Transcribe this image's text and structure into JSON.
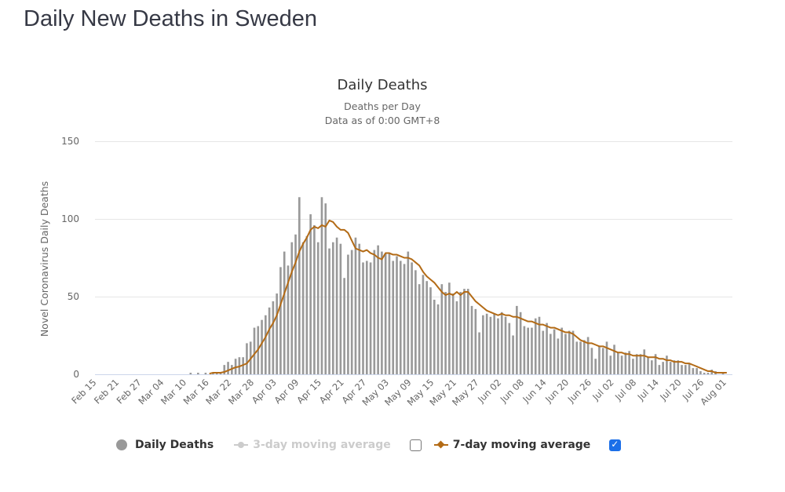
{
  "page": {
    "title": "Daily New Deaths in Sweden"
  },
  "legend": {
    "items": [
      {
        "label": "Daily Deaths",
        "color": "#999999",
        "active": true
      },
      {
        "label": "3-day moving average",
        "color": "#cccccc",
        "active": false,
        "checked": false
      },
      {
        "label": "7-day moving average",
        "color": "#b36b16",
        "active": true,
        "checked": true
      }
    ]
  },
  "chart_data": {
    "type": "bar",
    "title": "Daily Deaths",
    "subtitle": [
      "Deaths per Day",
      "Data as of 0:00 GMT+8"
    ],
    "xlabel": "",
    "ylabel": "Novel Coronavirus Daily Deaths",
    "ylim": [
      0,
      150
    ],
    "yticks": [
      0,
      50,
      100,
      150
    ],
    "grid": true,
    "start_date": "Feb 15",
    "num_days": 170,
    "xtick_labels": [
      "Feb 15",
      "Feb 21",
      "Feb 27",
      "Mar 04",
      "Mar 10",
      "Mar 16",
      "Mar 22",
      "Mar 28",
      "Apr 03",
      "Apr 09",
      "Apr 15",
      "Apr 21",
      "Apr 27",
      "May 03",
      "May 09",
      "May 15",
      "May 21",
      "May 27",
      "Jun 02",
      "Jun 08",
      "Jun 14",
      "Jun 20",
      "Jun 26",
      "Jul 02",
      "Jul 08",
      "Jul 14",
      "Jul 20",
      "Jul 26",
      "Aug 01"
    ],
    "xtick_interval_days": 6,
    "series": [
      {
        "name": "Daily Deaths",
        "type": "bar",
        "color": "#999999",
        "values": [
          0,
          0,
          0,
          0,
          0,
          0,
          0,
          0,
          0,
          0,
          0,
          0,
          0,
          0,
          0,
          0,
          0,
          0,
          0,
          0,
          0,
          0,
          0,
          0,
          0,
          1,
          0,
          1,
          0,
          1,
          0,
          1,
          1,
          1,
          6,
          8,
          6,
          10,
          11,
          11,
          20,
          21,
          30,
          31,
          35,
          38,
          43,
          47,
          52,
          69,
          79,
          70,
          85,
          90,
          114,
          85,
          89,
          103,
          96,
          85,
          114,
          110,
          81,
          85,
          88,
          84,
          62,
          77,
          80,
          88,
          84,
          72,
          73,
          72,
          80,
          83,
          79,
          78,
          78,
          73,
          76,
          73,
          71,
          79,
          72,
          67,
          58,
          64,
          60,
          56,
          48,
          45,
          58,
          53,
          59,
          52,
          47,
          53,
          55,
          55,
          44,
          42,
          27,
          38,
          39,
          37,
          39,
          36,
          40,
          37,
          33,
          25,
          44,
          40,
          31,
          30,
          30,
          36,
          37,
          28,
          33,
          26,
          29,
          23,
          30,
          26,
          28,
          28,
          21,
          21,
          22,
          24,
          17,
          10,
          18,
          17,
          21,
          12,
          19,
          14,
          12,
          14,
          15,
          10,
          13,
          13,
          16,
          11,
          9,
          13,
          6,
          8,
          12,
          8,
          9,
          9,
          6,
          6,
          7,
          4,
          4,
          2,
          1,
          1,
          3,
          2,
          0,
          1,
          0,
          0
        ]
      },
      {
        "name": "7-day moving average",
        "type": "line",
        "color": "#b36b16",
        "values": [
          null,
          null,
          null,
          null,
          null,
          null,
          null,
          null,
          null,
          null,
          null,
          null,
          null,
          null,
          null,
          null,
          null,
          null,
          null,
          null,
          null,
          null,
          null,
          null,
          null,
          null,
          null,
          null,
          null,
          null,
          0.4,
          1,
          1,
          1,
          1.5,
          2.5,
          3.5,
          4.5,
          5,
          6,
          7,
          10,
          13,
          16,
          20,
          24,
          29,
          33,
          38,
          45,
          52,
          59,
          66,
          72,
          79,
          84,
          88,
          93,
          95,
          94,
          96,
          95,
          99,
          98,
          95,
          93,
          93,
          91,
          86,
          81,
          80,
          79,
          80,
          78,
          77,
          75,
          74,
          78,
          78,
          77,
          77,
          76,
          75,
          75,
          74,
          72,
          70,
          66,
          63,
          61,
          59,
          56,
          53,
          51,
          52,
          51,
          53,
          51,
          53,
          53,
          50,
          47,
          45,
          43,
          41,
          40,
          39,
          38,
          39,
          38,
          38,
          37,
          37,
          36,
          35,
          34,
          34,
          33,
          32,
          32,
          31,
          30,
          30,
          29,
          28,
          27,
          27,
          26,
          24,
          22,
          21,
          20,
          20,
          19,
          18,
          18,
          17,
          16,
          15,
          14,
          14,
          13,
          13,
          12,
          12,
          12,
          12,
          11,
          11,
          11,
          10,
          10,
          9,
          9,
          8,
          8,
          8,
          7,
          7,
          6,
          5,
          4,
          3,
          2,
          2,
          1,
          1,
          1,
          1
        ]
      }
    ]
  }
}
